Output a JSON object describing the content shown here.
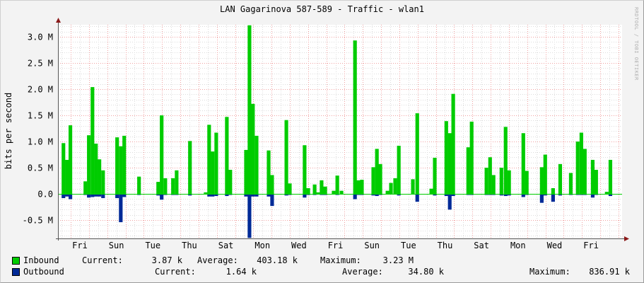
{
  "title": "LAN Gagarinova 587-589 - Traffic - wlan1",
  "watermark": "RRDTOOL / TOBI OETIKER",
  "chart_data": {
    "type": "area",
    "title": "LAN Gagarinova 587-589 - Traffic - wlan1",
    "ylabel": "bits per second",
    "ylim": [
      -0.85,
      3.23
    ],
    "yunit": "M",
    "yticks": [
      {
        "v": 3.0,
        "label": "3.0 M"
      },
      {
        "v": 2.5,
        "label": "2.5 M"
      },
      {
        "v": 2.0,
        "label": "2.0 M"
      },
      {
        "v": 1.5,
        "label": "1.5 M"
      },
      {
        "v": 1.0,
        "label": "1.0 M"
      },
      {
        "v": 0.5,
        "label": "0.5 M"
      },
      {
        "v": 0.0,
        "label": "0.0"
      },
      {
        "v": -0.5,
        "label": "-0.5 M"
      }
    ],
    "xlim_days": [
      -0.7,
      30.2
    ],
    "xticks": [
      {
        "day": 0,
        "label": "Fri"
      },
      {
        "day": 2,
        "label": "Sun"
      },
      {
        "day": 4,
        "label": "Tue"
      },
      {
        "day": 6,
        "label": "Thu"
      },
      {
        "day": 8,
        "label": "Sat"
      },
      {
        "day": 10,
        "label": "Mon"
      },
      {
        "day": 12,
        "label": "Wed"
      },
      {
        "day": 14,
        "label": "Fri"
      },
      {
        "day": 16,
        "label": "Sun"
      },
      {
        "day": 18,
        "label": "Tue"
      },
      {
        "day": 20,
        "label": "Thu"
      },
      {
        "day": 22,
        "label": "Sat"
      },
      {
        "day": 24,
        "label": "Mon"
      },
      {
        "day": 26,
        "label": "Wed"
      },
      {
        "day": 28,
        "label": "Fri"
      }
    ],
    "grid": true,
    "inbound_color": "#00cc00",
    "outbound_color": "#002a97",
    "series_columns": [
      "day",
      "inbound_M",
      "outbound_M"
    ],
    "points": [
      [
        -0.5,
        0.97,
        0.08
      ],
      [
        -0.31,
        0.65,
        0.05
      ],
      [
        -0.12,
        1.31,
        0.1
      ],
      [
        0.7,
        0.24,
        0.02
      ],
      [
        0.89,
        1.12,
        0.07
      ],
      [
        1.09,
        2.04,
        0.06
      ],
      [
        1.28,
        0.96,
        0.05
      ],
      [
        1.47,
        0.66,
        0.05
      ],
      [
        1.67,
        0.45,
        0.08
      ],
      [
        2.44,
        1.08,
        0.08
      ],
      [
        2.64,
        0.91,
        0.54
      ],
      [
        2.83,
        1.11,
        0.06
      ],
      [
        3.64,
        0.33,
        0.02
      ],
      [
        4.69,
        0.23,
        0.03
      ],
      [
        4.88,
        1.5,
        0.11
      ],
      [
        5.08,
        0.3,
        0.02
      ],
      [
        5.5,
        0.3,
        0.02
      ],
      [
        5.7,
        0.45,
        0.02
      ],
      [
        6.43,
        1.01,
        0.03
      ],
      [
        7.29,
        0.03,
        0.0
      ],
      [
        7.48,
        1.32,
        0.05
      ],
      [
        7.67,
        0.81,
        0.05
      ],
      [
        7.87,
        1.17,
        0.04
      ],
      [
        8.45,
        1.47,
        0.04
      ],
      [
        8.64,
        0.46,
        0.02
      ],
      [
        9.5,
        0.84,
        0.05
      ],
      [
        9.69,
        3.22,
        0.84
      ],
      [
        9.88,
        1.72,
        0.05
      ],
      [
        10.08,
        1.11,
        0.05
      ],
      [
        10.74,
        0.83,
        0.05
      ],
      [
        10.93,
        0.36,
        0.23
      ],
      [
        11.71,
        1.41,
        0.03
      ],
      [
        11.9,
        0.2,
        0.02
      ],
      [
        12.71,
        0.93,
        0.07
      ],
      [
        12.91,
        0.11,
        0.02
      ],
      [
        13.26,
        0.18,
        0.02
      ],
      [
        13.45,
        0.03,
        0.01
      ],
      [
        13.64,
        0.26,
        0.02
      ],
      [
        13.84,
        0.14,
        0.02
      ],
      [
        14.3,
        0.06,
        0.01
      ],
      [
        14.5,
        0.35,
        0.02
      ],
      [
        14.73,
        0.06,
        0.0
      ],
      [
        15.47,
        2.93,
        0.1
      ],
      [
        15.66,
        0.26,
        0.02
      ],
      [
        15.85,
        0.27,
        0.02
      ],
      [
        16.47,
        0.51,
        0.03
      ],
      [
        16.67,
        0.86,
        0.04
      ],
      [
        16.86,
        0.57,
        0.02
      ],
      [
        17.25,
        0.06,
        0.01
      ],
      [
        17.44,
        0.21,
        0.01
      ],
      [
        17.67,
        0.3,
        0.01
      ],
      [
        17.87,
        0.92,
        0.03
      ],
      [
        18.64,
        0.28,
        0.01
      ],
      [
        18.88,
        1.54,
        0.15
      ],
      [
        19.65,
        0.1,
        0.01
      ],
      [
        19.84,
        0.69,
        0.03
      ],
      [
        20.47,
        1.39,
        0.04
      ],
      [
        20.66,
        1.16,
        0.3
      ],
      [
        20.85,
        1.91,
        0.04
      ],
      [
        21.67,
        0.89,
        0.02
      ],
      [
        21.86,
        1.38,
        0.02
      ],
      [
        22.67,
        0.5,
        0.02
      ],
      [
        22.87,
        0.7,
        0.02
      ],
      [
        23.06,
        0.36,
        0.02
      ],
      [
        23.49,
        0.5,
        0.03
      ],
      [
        23.72,
        1.28,
        0.04
      ],
      [
        23.91,
        0.45,
        0.03
      ],
      [
        24.69,
        1.16,
        0.06
      ],
      [
        24.88,
        0.44,
        0.02
      ],
      [
        25.7,
        0.51,
        0.17
      ],
      [
        25.89,
        0.75,
        0.03
      ],
      [
        26.32,
        0.11,
        0.15
      ],
      [
        26.71,
        0.57,
        0.03
      ],
      [
        27.29,
        0.4,
        0.02
      ],
      [
        27.67,
        1.0,
        0.02
      ],
      [
        27.87,
        1.17,
        0.02
      ],
      [
        28.06,
        0.86,
        0.02
      ],
      [
        28.49,
        0.65,
        0.07
      ],
      [
        28.68,
        0.46,
        0.02
      ],
      [
        29.26,
        0.04,
        0.01
      ],
      [
        29.46,
        0.65,
        0.04
      ]
    ]
  },
  "legend": {
    "inbound": {
      "label": "Inbound",
      "current_label": "Current:",
      "current": "3.87 k",
      "average_label": "Average:",
      "average": "403.18 k",
      "maximum_label": "Maximum:",
      "maximum": "3.23 M"
    },
    "outbound": {
      "label": "Outbound",
      "current_label": "Current:",
      "current": "1.64 k",
      "average_label": "Average:",
      "average": "34.80 k",
      "maximum_label": "Maximum:",
      "maximum": "836.91 k"
    }
  }
}
